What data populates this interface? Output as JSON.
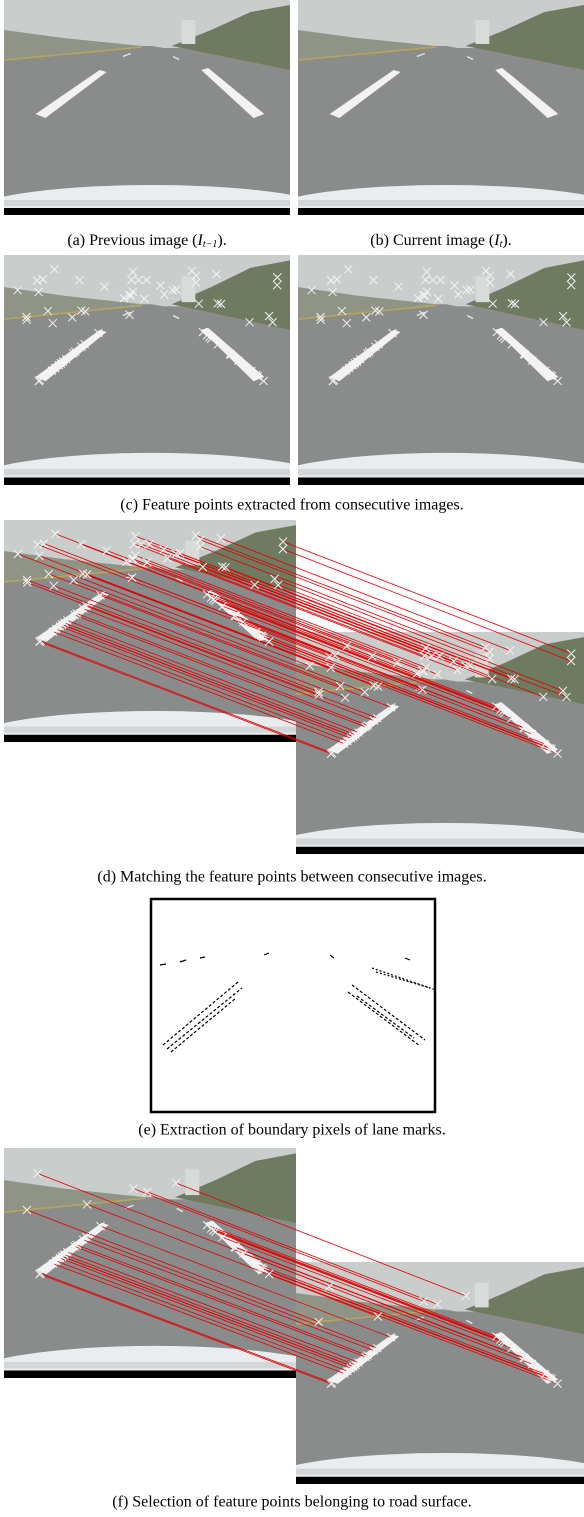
{
  "captions": {
    "a": {
      "prefix": "(a) Previous image  (",
      "symbol": "I",
      "subscript": "t−1",
      "suffix": ")."
    },
    "b": {
      "prefix": "(b) Current image  (",
      "symbol": "I",
      "subscript": "t",
      "suffix": ")."
    },
    "c": "(c) Feature points extracted from consecutive images.",
    "d": "(d) Matching the feature points between consecutive images.",
    "e": "(e) Extraction of boundary pixels of lane marks.",
    "f": "(f) Selection of feature points belonging to road surface."
  }
}
